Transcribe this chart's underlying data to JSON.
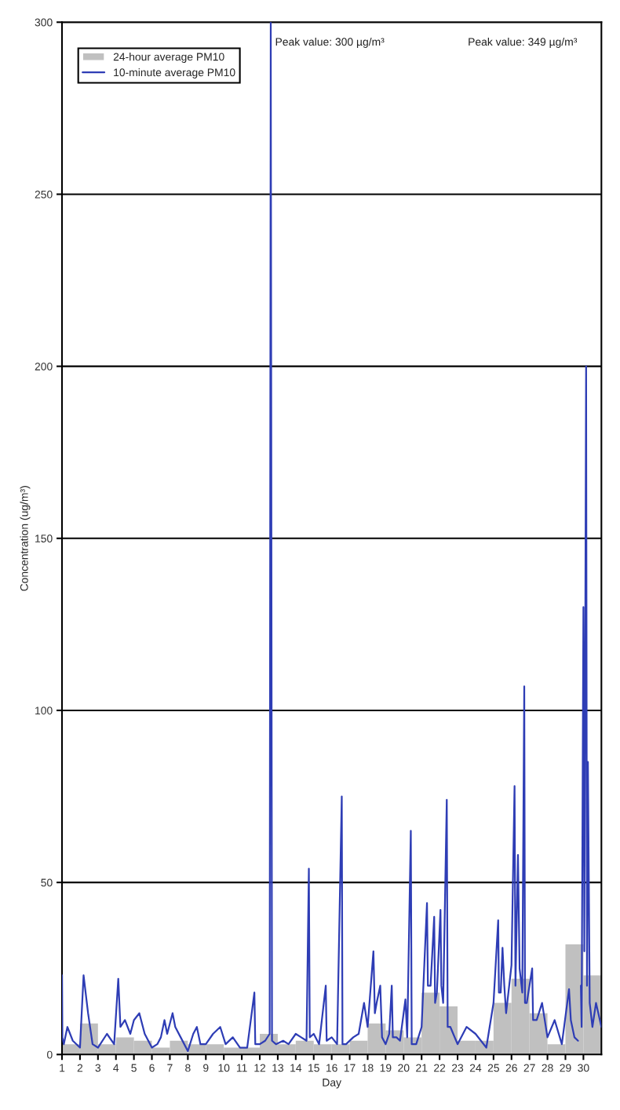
{
  "chart_data": {
    "type": "line",
    "xlabel": "Day",
    "ylabel": "Concentration (ug/m³)",
    "xlim": [
      1,
      31
    ],
    "xticks": [
      1,
      2,
      3,
      4,
      5,
      6,
      7,
      8,
      9,
      10,
      11,
      12,
      13,
      14,
      15,
      16,
      17,
      18,
      19,
      20,
      21,
      22,
      23,
      24,
      25,
      26,
      27,
      28,
      29,
      30
    ],
    "ylim": [
      0,
      300
    ],
    "yticks": [
      0,
      50,
      100,
      150,
      200,
      250,
      300
    ],
    "grid": "y",
    "legend": "top left",
    "series": [
      {
        "name": "24-hour average PM10",
        "type": "bar",
        "color": "#c0c0c0",
        "x": [
          1.5,
          2.5,
          3.5,
          4.5,
          5.5,
          6.5,
          7.5,
          8.5,
          9.5,
          10.5,
          11.5,
          12.5,
          13.5,
          14.5,
          15.5,
          16.5,
          17.5,
          18.5,
          19.5,
          20.5,
          21.5,
          22.5,
          23.5,
          24.5,
          25.5,
          26.5,
          27.5,
          28.5,
          29.5,
          30.5
        ],
        "values": [
          3,
          9,
          3,
          5,
          4,
          2,
          4,
          3,
          3,
          2,
          2,
          6,
          3,
          4,
          3,
          3,
          4,
          9,
          7,
          5,
          18,
          14,
          4,
          4,
          15,
          22,
          12,
          3,
          32,
          23
        ]
      },
      {
        "name": "10-minute average PM10",
        "color": "#2e3db5",
        "x": [
          1.0,
          1.02,
          1.1,
          1.3,
          1.6,
          2.0,
          2.2,
          2.45,
          2.7,
          3.0,
          3.5,
          3.9,
          4.13,
          4.25,
          4.5,
          4.8,
          5.0,
          5.3,
          5.6,
          6.0,
          6.3,
          6.5,
          6.7,
          6.85,
          7.15,
          7.3,
          7.6,
          8.0,
          8.3,
          8.5,
          8.7,
          9.0,
          9.4,
          9.8,
          10.1,
          10.5,
          10.9,
          11.3,
          11.7,
          11.75,
          12.0,
          12.3,
          12.55,
          12.61,
          12.68,
          12.9,
          13.3,
          13.6,
          14.0,
          14.3,
          14.6,
          14.73,
          14.78,
          15.0,
          15.3,
          15.67,
          15.72,
          16.0,
          16.3,
          16.56,
          16.6,
          16.8,
          17.2,
          17.5,
          17.8,
          18.0,
          18.32,
          18.4,
          18.5,
          18.7,
          18.8,
          19.0,
          19.2,
          19.34,
          19.4,
          19.6,
          19.8,
          20.1,
          20.2,
          20.4,
          20.45,
          20.7,
          21.0,
          21.3,
          21.35,
          21.5,
          21.7,
          21.75,
          21.85,
          22.05,
          22.1,
          22.2,
          22.4,
          22.45,
          22.6,
          23.0,
          23.5,
          24.0,
          24.3,
          24.6,
          25.0,
          25.26,
          25.3,
          25.4,
          25.5,
          25.6,
          25.7,
          26.0,
          26.17,
          26.22,
          26.36,
          26.45,
          26.6,
          26.71,
          26.75,
          26.85,
          27.15,
          27.2,
          27.4,
          27.7,
          28.0,
          28.4,
          28.8,
          29.2,
          29.3,
          29.5,
          29.7,
          29.83,
          29.86,
          29.9,
          30.0,
          30.05,
          30.15,
          30.2,
          30.25,
          30.35,
          30.5,
          30.7,
          31.0
        ],
        "values": [
          23,
          5,
          3,
          8,
          4,
          2,
          23,
          12,
          3,
          2,
          6,
          3,
          22,
          8,
          10,
          6,
          10,
          12,
          6,
          2,
          3,
          5,
          10,
          6,
          12,
          8,
          5,
          1,
          6,
          8,
          3,
          3,
          6,
          8,
          3,
          5,
          2,
          2,
          18,
          3,
          3,
          4,
          6,
          300,
          4,
          3,
          4,
          3,
          6,
          5,
          4,
          54,
          5,
          6,
          3,
          20,
          4,
          5,
          3,
          75,
          3,
          3,
          5,
          6,
          15,
          8,
          30,
          12,
          15,
          20,
          5,
          3,
          6,
          20,
          5,
          5,
          4,
          16,
          5,
          65,
          3,
          3,
          8,
          44,
          20,
          20,
          40,
          15,
          18,
          42,
          20,
          15,
          74,
          8,
          8,
          3,
          8,
          6,
          4,
          2,
          15,
          39,
          18,
          18,
          31,
          20,
          12,
          26,
          78,
          20,
          58,
          25,
          18,
          107,
          15,
          15,
          25,
          10,
          10,
          15,
          5,
          10,
          3,
          19,
          10,
          5,
          4,
          null,
          20,
          8,
          130,
          30,
          200,
          20,
          85,
          15,
          8,
          15,
          8
        ]
      }
    ],
    "annotations": [
      {
        "text": "Peak value: 300 µg/m³",
        "x": 12.61
      },
      "Peak value: 349 µg/m³"
    ]
  }
}
